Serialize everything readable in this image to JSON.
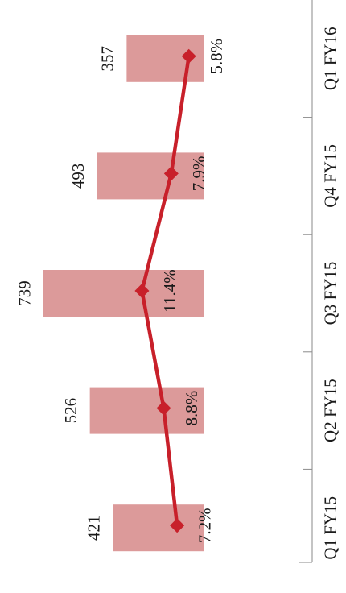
{
  "chart_data": {
    "type": "bar",
    "orientation": "rotated-90",
    "categories": [
      "Q1 FY15",
      "Q2 FY15",
      "Q3 FY15",
      "Q4 FY15",
      "Q1 FY16"
    ],
    "series": [
      {
        "type": "bar",
        "values": [
          421,
          526,
          739,
          493,
          357
        ],
        "value_labels": [
          "421",
          "526",
          "739",
          "493",
          "357"
        ],
        "color": "#dc9a9a"
      },
      {
        "type": "line",
        "values": [
          7.2,
          8.8,
          11.4,
          7.9,
          5.8
        ],
        "value_labels": [
          "7.2%",
          "8.8%",
          "11.4%",
          "7.9%",
          "5.8%"
        ],
        "color": "#c8202a",
        "marker": "diamond"
      }
    ],
    "bar_range": [
      0,
      800
    ],
    "line_range": [
      0,
      14
    ],
    "grid": false,
    "legend": "none",
    "title": "",
    "xlabel": "",
    "ylabel": ""
  }
}
